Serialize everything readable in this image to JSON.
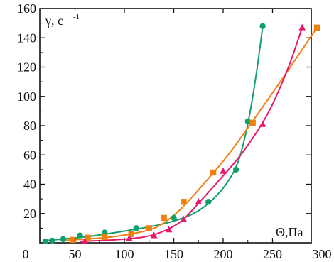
{
  "chart_data": {
    "type": "scatter",
    "title": "",
    "xlabel": "Θ,Па",
    "ylabel": "γ, c",
    "ylabel_superscript": "-1",
    "xlim": [
      0,
      300
    ],
    "ylim": [
      0,
      160
    ],
    "x_ticks": [
      "0",
      "50",
      "100",
      "150",
      "200",
      "250",
      "300"
    ],
    "y_ticks": [
      "20",
      "40",
      "60",
      "80",
      "100",
      "120",
      "140",
      "160"
    ],
    "grid": false,
    "legend": "none",
    "series": [
      {
        "color": "#11a06a",
        "marker": "circle",
        "points": [
          [
            20,
            1
          ],
          [
            27,
            1.5
          ],
          [
            38,
            2.5
          ],
          [
            55,
            5
          ],
          [
            80,
            7
          ],
          [
            112,
            10
          ],
          [
            150,
            17
          ],
          [
            185,
            28
          ],
          [
            213,
            50
          ],
          [
            225,
            83
          ],
          [
            240,
            148
          ]
        ],
        "fit": [
          [
            20,
            1.5
          ],
          [
            60,
            4
          ],
          [
            100,
            8
          ],
          [
            140,
            13
          ],
          [
            170,
            20
          ],
          [
            190,
            30
          ],
          [
            205,
            42
          ],
          [
            215,
            55
          ],
          [
            222,
            72
          ],
          [
            228,
            92
          ],
          [
            233,
            113
          ],
          [
            237,
            132
          ],
          [
            240,
            148
          ]
        ]
      },
      {
        "color": "#f08010",
        "marker": "square",
        "points": [
          [
            48,
            2
          ],
          [
            63,
            3.5
          ],
          [
            80,
            4
          ],
          [
            107,
            6
          ],
          [
            125,
            10
          ],
          [
            140,
            17
          ],
          [
            160,
            28
          ],
          [
            190,
            48
          ],
          [
            230,
            82
          ],
          [
            295,
            147
          ]
        ],
        "fit": [
          [
            35,
            1.5
          ],
          [
            80,
            3.5
          ],
          [
            110,
            6.5
          ],
          [
            130,
            10
          ],
          [
            145,
            16
          ],
          [
            160,
            25
          ],
          [
            180,
            40
          ],
          [
            205,
            60
          ],
          [
            235,
            88
          ],
          [
            265,
            117
          ],
          [
            295,
            147
          ]
        ]
      },
      {
        "color": "#e8186c",
        "marker": "triangle",
        "points": [
          [
            60,
            1
          ],
          [
            105,
            3
          ],
          [
            130,
            5
          ],
          [
            145,
            9
          ],
          [
            160,
            16
          ],
          [
            175,
            28
          ],
          [
            200,
            49
          ],
          [
            240,
            81
          ],
          [
            280,
            147
          ]
        ],
        "fit": [
          [
            55,
            1
          ],
          [
            90,
            2
          ],
          [
            120,
            4
          ],
          [
            140,
            8
          ],
          [
            158,
            15
          ],
          [
            175,
            27
          ],
          [
            195,
            42
          ],
          [
            220,
            62
          ],
          [
            245,
            88
          ],
          [
            265,
            118
          ],
          [
            280,
            147
          ]
        ]
      }
    ]
  }
}
